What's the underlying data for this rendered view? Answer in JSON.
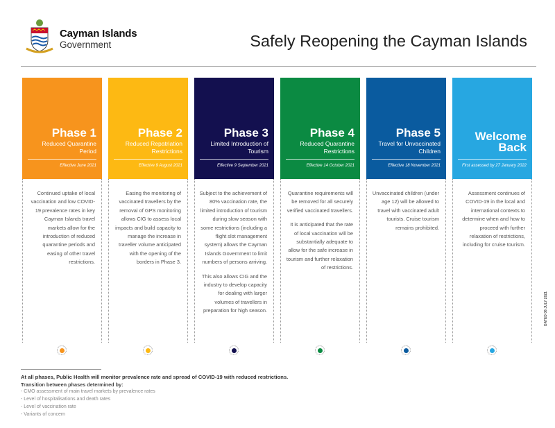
{
  "header": {
    "org_line1": "Cayman Islands",
    "org_line2": "Government",
    "title": "Safely Reopening the Cayman Islands"
  },
  "phases": [
    {
      "name": "Phase 1",
      "subtitle": "Reduced Quarantine Period",
      "effective": "Effective June 2021",
      "color": "#F7941D",
      "paragraphs": [
        "Continued uptake of local vaccination and low COVID-19 prevalence rates in key Cayman Islands travel markets allow for the introduction of reduced quarantine periods and easing of other travel restrictions."
      ]
    },
    {
      "name": "Phase 2",
      "subtitle": "Reduced Repatriation Restrictions",
      "effective": "Effective 9 August 2021",
      "color": "#FDB913",
      "paragraphs": [
        "Easing the monitoring of vaccinated travellers by the removal of GPS monitoring allows CIG to assess local impacts and build capacity to manage the increase in traveller volume anticipated with the opening of the borders in Phase 3."
      ]
    },
    {
      "name": "Phase 3",
      "subtitle": "Limited Introduction of Tourism",
      "effective": "Effective 9 September 2021",
      "color": "#13104F",
      "paragraphs": [
        "Subject to the achievement of 80% vaccination rate, the limited introduction of tourism during slow season with some restrictions (including a flight slot management system) allows the Cayman Islands Government to limit numbers of persons arriving.",
        "This also allows CIG and the industry to develop capacity for dealing with larger volumes of travellers in preparation for high season."
      ]
    },
    {
      "name": "Phase 4",
      "subtitle": "Reduced Quarantine Restrictions",
      "effective": "Effective 14 October 2021",
      "color": "#0B8A42",
      "paragraphs": [
        "Quarantine requirements will be removed for all securely verified vaccinated travellers.",
        "It is anticipated that the rate of local vaccination will be substantially adequate to allow for the safe increase in tourism and further relaxation of restrictions."
      ]
    },
    {
      "name": "Phase 5",
      "subtitle": "Travel for Unvaccinated Children",
      "effective": "Effective 18 November 2021",
      "color": "#0A5B9F",
      "paragraphs": [
        "Unvaccinated children (under age 12) will be allowed to travel with vaccinated adult tourists. Cruise tourism remains prohibited."
      ]
    },
    {
      "name": "Welcome Back",
      "subtitle": "",
      "effective": "First assessed by 27 January 2022",
      "color": "#27A7E1",
      "paragraphs": [
        "Assessment continues of COVID-19 in the local and international contexts to determine when and how to proceed with further relaxation of restrictions, including for cruise tourism."
      ]
    }
  ],
  "footer": {
    "statement": "At all phases, Public Health will monitor prevalence rate and spread of COVID-19 with reduced restrictions.",
    "transition_heading": "Transition between phases determined by:",
    "criteria": [
      "- CMO assessment of main travel markets by prevalence rates",
      "- Level of hospitalisations and death rates",
      "- Level of vaccination rate",
      "- Variants of concern"
    ]
  },
  "side_note": "DATED 08 JULY 2021"
}
